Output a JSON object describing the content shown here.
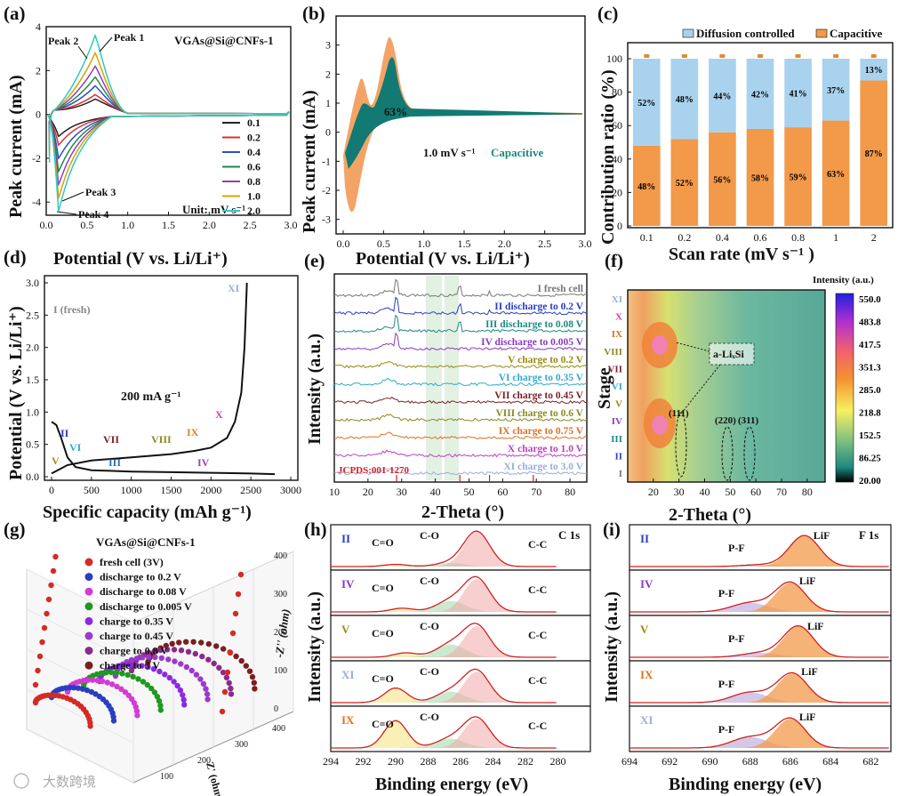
{
  "panels": {
    "a": {
      "label": "(a)",
      "title": "VGAs@Si@CNFs-1",
      "xlabel": "Potential (V vs. Li/Li⁺)",
      "ylabel": "Peak current (mA)",
      "xticks": [
        "0.0",
        "0.5",
        "1.0",
        "1.5",
        "2.0",
        "2.5",
        "3.0"
      ],
      "yticks": [
        "4",
        "2",
        "0",
        "-2",
        "-4"
      ],
      "peaks": [
        "Peak 1",
        "Peak 2",
        "Peak 3",
        "Peak 4"
      ],
      "unit": "Unit:   mV s⁻¹",
      "legend": [
        "0.1",
        "0.2",
        "0.4",
        "0.6",
        "0.8",
        "1.0",
        "2.0"
      ]
    },
    "b": {
      "label": "(b)",
      "xlabel": "Potential (V vs. Li/Li⁺)",
      "ylabel": "Peak current (mA)",
      "xticks": [
        "0.0",
        "0.5",
        "1.0",
        "1.5",
        "2.0",
        "2.5",
        "3.0"
      ],
      "yticks": [
        "3",
        "2",
        "1",
        "0",
        "-1",
        "-2",
        "-3"
      ],
      "percent": "63%",
      "rate": "1.0 mV s⁻¹",
      "cap": "Capacitive"
    },
    "c": {
      "label": "(c)",
      "legend_diff": "Diffusion controlled",
      "legend_cap": "Capacitive",
      "xlabel": "Scan rate (mV s⁻¹ )",
      "ylabel": "Contribution ratio (%)",
      "yticks": [
        "100",
        "80",
        "60",
        "40",
        "20",
        "0"
      ]
    },
    "d": {
      "label": "(d)",
      "xlabel": "Specific capacity (mAh g⁻¹)",
      "ylabel": "Potential (V vs. Li/Li⁺)",
      "xticks": [
        "0",
        "500",
        "1000",
        "1500",
        "2000",
        "2500",
        "3000"
      ],
      "yticks": [
        "3.0",
        "2.5",
        "2.0",
        "1.5",
        "1.0",
        "0.5",
        "0.0"
      ],
      "fresh": "I (fresh)",
      "current": "200 mA g⁻¹",
      "stages": [
        "II",
        "III",
        "IV",
        "V",
        "VI",
        "VII",
        "VIII",
        "IX",
        "X",
        "XI"
      ]
    },
    "e": {
      "label": "(e)",
      "xlabel": "2-Theta (°)",
      "ylabel": "Intensity (a.u.)",
      "xticks": [
        "10",
        "20",
        "30",
        "40",
        "50",
        "60",
        "70",
        "80"
      ],
      "curves": [
        "I fresh cell",
        "II discharge to 0.2 V",
        "III discharge to 0.08 V",
        "IV discharge to 0.005 V",
        "V charge to 0.2 V",
        "VI charge to 0.35 V",
        "VII charge to 0.45 V",
        "VIII charge to 0.6 V",
        "IX charge to 0.75 V",
        "X charge to 1.0 V",
        "XI charge to 3.0 V"
      ],
      "jcpds": "JCPDS:001-1270"
    },
    "f": {
      "label": "(f)",
      "xlabel": "2-Theta (°)",
      "ylabel": "Stage",
      "xticks": [
        "20",
        "30",
        "40",
        "50",
        "60",
        "70",
        "80"
      ],
      "stages": [
        "XI",
        "X",
        "IX",
        "VIII",
        "VII",
        "VI",
        "V",
        "IV",
        "III",
        "II",
        "I"
      ],
      "colorbar_title": "Intensity (a.u.)",
      "colorbar_ticks": [
        "550.0",
        "483.8",
        "417.5",
        "351.3",
        "285.0",
        "218.8",
        "152.5",
        "86.25",
        "20.00"
      ],
      "ann_si": "a-LiₓSi",
      "planes": [
        "(111)",
        "(220)",
        "(311)"
      ]
    },
    "g": {
      "label": "(g)",
      "title": "VGAs@Si@CNFs-1",
      "zlabel": "-Z'' (ohm)",
      "ylabel": "Z' (ohm)",
      "zticks": [
        "400",
        "300",
        "200",
        "100",
        "0"
      ],
      "yticks": [
        "100",
        "200",
        "300",
        "400"
      ],
      "legend": [
        "fresh cell (3V)",
        "discharge to 0.2 V",
        "discharge to 0.08 V",
        "discharge to 0.005 V",
        "charge to 0.35 V",
        "charge to 0.45 V",
        "charge to 0.8 V",
        "charge to 3 V"
      ],
      "colors": [
        "#d52b25",
        "#2a3fbf",
        "#d43bd5",
        "#1e9a1e",
        "#8a2be2",
        "#9a3acb",
        "#8b2a8b",
        "#7a1f1f"
      ]
    },
    "h": {
      "label": "(h)",
      "title": "C 1s",
      "xlabel": "Binding energy (eV)",
      "ylabel": "Intensity (a.u.)",
      "xticks": [
        "294",
        "292",
        "290",
        "288",
        "286",
        "284",
        "282",
        "280"
      ],
      "rows": [
        "II",
        "IV",
        "V",
        "XI",
        "IX"
      ],
      "peak_labels": [
        "C=O",
        "C-O",
        "C-C"
      ]
    },
    "i": {
      "label": "(i)",
      "title": "F 1s",
      "xlabel": "Binding energy (eV)",
      "ylabel": "Intensity (a.u.)",
      "xticks": [
        "694",
        "692",
        "690",
        "688",
        "686",
        "684",
        "682"
      ],
      "rows": [
        "II",
        "IV",
        "V",
        "IX",
        "XI"
      ],
      "peak_labels": [
        "LiF",
        "P-F"
      ]
    }
  },
  "watermark": "大数跨境",
  "chart_data": [
    {
      "panel": "a",
      "type": "line",
      "x_range": [
        0,
        3.0
      ],
      "ylim": [
        -4.6,
        4
      ],
      "series": [
        {
          "name": "0.1",
          "color": "#222222",
          "peak_anodic": 0.7,
          "peak_cathodic": -1.0
        },
        {
          "name": "0.2",
          "color": "#e03030",
          "peak_anodic": 0.9,
          "peak_cathodic": -1.4
        },
        {
          "name": "0.4",
          "color": "#2b4fc9",
          "peak_anodic": 1.3,
          "peak_cathodic": -2.0
        },
        {
          "name": "0.6",
          "color": "#22884a",
          "peak_anodic": 1.7,
          "peak_cathodic": -2.6
        },
        {
          "name": "0.8",
          "color": "#8e44ad",
          "peak_anodic": 2.2,
          "peak_cathodic": -3.2
        },
        {
          "name": "1.0",
          "color": "#d6a400",
          "peak_anodic": 2.8,
          "peak_cathodic": -3.8
        },
        {
          "name": "2.0",
          "color": "#33c6c6",
          "peak_anodic": 3.6,
          "peak_cathodic": -4.4
        }
      ]
    },
    {
      "panel": "c",
      "type": "bar",
      "categories": [
        "0.1",
        "0.2",
        "0.4",
        "0.6",
        "0.8",
        "1",
        "2"
      ],
      "series": [
        {
          "name": "Capacitive",
          "color": "#f2994a",
          "values": [
            48,
            52,
            56,
            58,
            59,
            63,
            87
          ]
        },
        {
          "name": "Diffusion controlled",
          "color": "#a9d2ee",
          "values": [
            52,
            48,
            44,
            42,
            41,
            37,
            13
          ]
        }
      ],
      "ylim": [
        0,
        100
      ]
    },
    {
      "panel": "d",
      "type": "line",
      "xlim": [
        0,
        3000
      ],
      "ylim": [
        0,
        3.0
      ],
      "discharge": [
        [
          0,
          0.85
        ],
        [
          60,
          0.8
        ],
        [
          120,
          0.6
        ],
        [
          200,
          0.3
        ],
        [
          300,
          0.15
        ],
        [
          500,
          0.1
        ],
        [
          1000,
          0.08
        ],
        [
          1500,
          0.07
        ],
        [
          2000,
          0.06
        ],
        [
          2500,
          0.05
        ],
        [
          2800,
          0.04
        ]
      ],
      "charge": [
        [
          0,
          0.05
        ],
        [
          200,
          0.18
        ],
        [
          500,
          0.25
        ],
        [
          1000,
          0.3
        ],
        [
          1500,
          0.35
        ],
        [
          1800,
          0.4
        ],
        [
          2000,
          0.45
        ],
        [
          2200,
          0.6
        ],
        [
          2300,
          0.85
        ],
        [
          2380,
          1.3
        ],
        [
          2420,
          2.0
        ],
        [
          2450,
          3.0
        ]
      ]
    },
    {
      "panel": "c-labels",
      "type": "table",
      "capacitive_pct": [
        "48%",
        "52%",
        "56%",
        "58%",
        "59%",
        "63%",
        "87%"
      ],
      "diffusion_pct": [
        "52%",
        "48%",
        "44%",
        "42%",
        "41%",
        "37%",
        "13%"
      ]
    }
  ]
}
